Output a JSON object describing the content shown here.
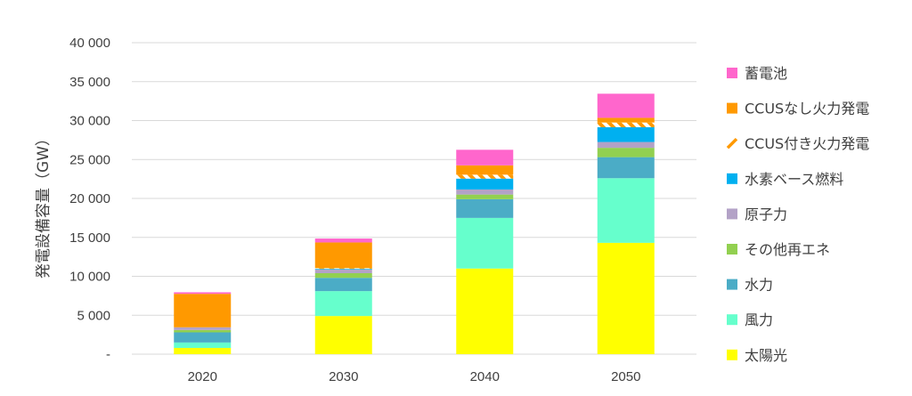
{
  "chart_data": {
    "type": "bar",
    "stacked": true,
    "ylabel": "発電設備容量（GW）",
    "xlabel": "",
    "ylim": [
      0,
      40000
    ],
    "yticks": [
      0,
      5000,
      10000,
      15000,
      20000,
      25000,
      30000,
      35000,
      40000
    ],
    "ytick_labels": [
      "-",
      "5 000",
      "10 000",
      "15 000",
      "20 000",
      "25 000",
      "30 000",
      "35 000",
      "40 000"
    ],
    "grid": true,
    "legend_position": "right",
    "categories": [
      "2020",
      "2030",
      "2040",
      "2050"
    ],
    "series": [
      {
        "name": "太陽光",
        "color": "#ffff00",
        "values": [
          800,
          4900,
          11000,
          14300
        ]
      },
      {
        "name": "風力",
        "color": "#66ffcc",
        "values": [
          700,
          3200,
          6500,
          8300
        ]
      },
      {
        "name": "水力",
        "color": "#4bacc6",
        "values": [
          1300,
          1700,
          2400,
          2700
        ]
      },
      {
        "name": "その他再エネ",
        "color": "#92d050",
        "values": [
          300,
          600,
          600,
          1200
        ]
      },
      {
        "name": "原子力",
        "color": "#b3a2c7",
        "values": [
          350,
          450,
          650,
          750
        ]
      },
      {
        "name": "水素ベース燃料",
        "color": "#00b0f0",
        "values": [
          0,
          100,
          1400,
          1900
        ]
      },
      {
        "name": "CCUS付き火力発電",
        "color": "#ff9900",
        "pattern": "stripes",
        "values": [
          0,
          100,
          500,
          600
        ]
      },
      {
        "name": "CCUSなし火力発電",
        "color": "#ff9900",
        "values": [
          4300,
          3300,
          1200,
          600
        ]
      },
      {
        "name": "蓄電池",
        "color": "#ff66cc",
        "values": [
          200,
          500,
          2000,
          3100
        ]
      }
    ]
  }
}
